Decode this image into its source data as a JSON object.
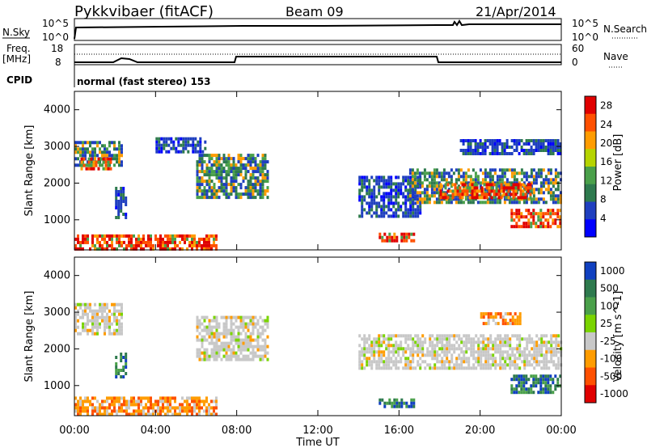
{
  "header": {
    "site": "Pykkvibaer (fitACF)",
    "beam": "Beam 09",
    "date": "21/Apr/2014"
  },
  "panels": {
    "nsky_label": "N.Sky",
    "nsearch_label": "N.Search",
    "nsky_ticks": [
      "10^5",
      "10^0"
    ],
    "freq_label_1": "Freq.",
    "freq_label_2": "[MHz]",
    "freq_ticks": [
      "18",
      "8"
    ],
    "nave_label": "Nave",
    "nave_ticks": [
      "60",
      "0"
    ],
    "cpid_label": "CPID",
    "cpid_value": "normal (fast stereo) 153"
  },
  "chart_data": [
    {
      "type": "heatmap",
      "title": "Power",
      "xlabel": "Time UT",
      "ylabel": "Slant Range [km]",
      "x_ticks": [
        "00:00",
        "04:00",
        "08:00",
        "12:00",
        "16:00",
        "20:00",
        "00:00"
      ],
      "xlim_hours": [
        0,
        24
      ],
      "y_ticks": [
        1000,
        2000,
        3000,
        4000
      ],
      "ylim": [
        180,
        4500
      ],
      "colorbar": {
        "label": "Power [dB]",
        "ticks": [
          4,
          8,
          12,
          16,
          20,
          24,
          28
        ],
        "range": [
          0,
          30
        ],
        "colors": [
          "#0000ff",
          "#1f3fbf",
          "#2e7a4e",
          "#4aa04a",
          "#b6d400",
          "#ff9c00",
          "#ff5000",
          "#e00000"
        ]
      },
      "regions": [
        {
          "t": [
            0.0,
            2.3
          ],
          "r": [
            2450,
            3150
          ],
          "level": "mid"
        },
        {
          "t": [
            0.3,
            1.8
          ],
          "r": [
            2400,
            2700
          ],
          "level": "high"
        },
        {
          "t": [
            0.0,
            7.0
          ],
          "r": [
            200,
            600
          ],
          "level": "high"
        },
        {
          "t": [
            2.0,
            2.5
          ],
          "r": [
            1100,
            1900
          ],
          "level": "low"
        },
        {
          "t": [
            4.0,
            6.5
          ],
          "r": [
            2850,
            3250
          ],
          "level": "low"
        },
        {
          "t": [
            6.0,
            9.5
          ],
          "r": [
            1600,
            2800
          ],
          "level": "mid"
        },
        {
          "t": [
            14.0,
            17.0
          ],
          "r": [
            1100,
            2200
          ],
          "level": "low"
        },
        {
          "t": [
            15.0,
            16.7
          ],
          "r": [
            450,
            650
          ],
          "level": "high"
        },
        {
          "t": [
            16.5,
            24.0
          ],
          "r": [
            1500,
            2400
          ],
          "level": "mid"
        },
        {
          "t": [
            18.0,
            22.5
          ],
          "r": [
            1600,
            2000
          ],
          "level": "high"
        },
        {
          "t": [
            21.5,
            24.0
          ],
          "r": [
            800,
            1300
          ],
          "level": "high"
        },
        {
          "t": [
            19.0,
            24.0
          ],
          "r": [
            2800,
            3200
          ],
          "level": "low"
        }
      ]
    },
    {
      "type": "heatmap",
      "title": "Velocity",
      "xlabel": "Time UT",
      "ylabel": "Slant Range [km]",
      "x_ticks": [
        "00:00",
        "04:00",
        "08:00",
        "12:00",
        "16:00",
        "20:00",
        "00:00"
      ],
      "xlim_hours": [
        0,
        24
      ],
      "y_ticks": [
        1000,
        2000,
        3000,
        4000
      ],
      "ylim": [
        180,
        4500
      ],
      "colorbar": {
        "label": "Velocity [m s^-1]",
        "ticks": [
          "1000",
          "500",
          "100",
          "25",
          "-25",
          "-100",
          "-500",
          "-1000"
        ],
        "colors": [
          "#1040c0",
          "#2e7a4e",
          "#4aa04a",
          "#7ad400",
          "#c8c8c8",
          "#ff9c00",
          "#ff5000",
          "#e00000"
        ]
      },
      "regions": [
        {
          "t": [
            0.0,
            2.3
          ],
          "r": [
            2450,
            3250
          ],
          "level": "zero"
        },
        {
          "t": [
            0.0,
            7.0
          ],
          "r": [
            200,
            700
          ],
          "level": "neg"
        },
        {
          "t": [
            6.0,
            9.5
          ],
          "r": [
            1700,
            2900
          ],
          "level": "zero"
        },
        {
          "t": [
            2.0,
            2.5
          ],
          "r": [
            1200,
            1900
          ],
          "level": "pos"
        },
        {
          "t": [
            14.0,
            24.0
          ],
          "r": [
            1500,
            2400
          ],
          "level": "zero"
        },
        {
          "t": [
            15.0,
            16.7
          ],
          "r": [
            450,
            650
          ],
          "level": "pos"
        },
        {
          "t": [
            21.5,
            24.0
          ],
          "r": [
            800,
            1300
          ],
          "level": "pos"
        },
        {
          "t": [
            20.0,
            22.0
          ],
          "r": [
            2700,
            3000
          ],
          "level": "neg"
        }
      ]
    }
  ]
}
